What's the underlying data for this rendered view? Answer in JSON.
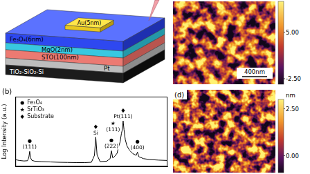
{
  "schematic": {
    "pad": "Au(5nm)",
    "layers": [
      "Fe₃O₄(6nm)",
      "MgO(2nm)",
      "STO(100nm)",
      "Pt",
      "TiO₂-SiO₂-Si"
    ]
  },
  "afm_top": {
    "scale_bar": "400nm",
    "colorbar": {
      "range": [
        -3.4,
        10
      ],
      "ticks": [
        {
          "value": 5,
          "label": "5.00"
        },
        {
          "value": -2.5,
          "label": "-2.50"
        }
      ]
    }
  },
  "chart_data": {
    "type": "line",
    "panel": "(b)",
    "y_label": "Log Intensity (a.u.)",
    "x": [
      15,
      16,
      17,
      17.8,
      18.1,
      18.3,
      18.5,
      18.8,
      19.5,
      21,
      23,
      25,
      27,
      29,
      31,
      32.5,
      33.2,
      33.5,
      33.8,
      34.5,
      36,
      36.8,
      37.1,
      37.4,
      37.8,
      38.4,
      38.8,
      39.1,
      39.4,
      39.6,
      39.8,
      40.0,
      40.3,
      40.7,
      41.3,
      42,
      42.8,
      43.1,
      43.4,
      44.5,
      46,
      48,
      50
    ],
    "values": [
      130,
      115,
      108,
      112,
      180,
      420,
      170,
      118,
      104,
      98,
      94,
      90,
      88,
      86,
      86,
      90,
      240,
      3200,
      260,
      98,
      104,
      150,
      460,
      170,
      200,
      320,
      900,
      1600,
      5200,
      9000,
      32000,
      9500,
      2200,
      900,
      480,
      310,
      240,
      380,
      200,
      150,
      132,
      122,
      116
    ],
    "color": "#000000",
    "log": "y",
    "xlim": [
      15,
      50
    ],
    "ylim": [
      50,
      1000000
    ],
    "tick_labels": false,
    "grid": false,
    "legend": "top-left",
    "legend_items": [
      {
        "label": "Fe₃O₄",
        "marker": "circle"
      },
      {
        "label": "SrTiO₃",
        "marker": "star"
      },
      {
        "label": "Substrate",
        "marker": "diamond"
      }
    ],
    "annotations": [
      {
        "text": "(111)",
        "x": 18.3,
        "marker": "circle"
      },
      {
        "text": "Si",
        "x": 33.5,
        "marker": "diamond"
      },
      {
        "text": "(222)",
        "x": 37.1,
        "marker": "circle"
      },
      {
        "text": "(111)",
        "x": 39.4,
        "marker": "star"
      },
      {
        "text": "Pt(111)",
        "x": 39.8,
        "marker": "diamond"
      },
      {
        "text": "(400)",
        "x": 43.1,
        "marker": "circle"
      }
    ]
  },
  "afm_d": {
    "panel": "(d)",
    "colorbar": {
      "unit": "nm",
      "range": [
        -0.9,
        3.0
      ],
      "ticks": [
        {
          "value": 2.5,
          "label": "2.50"
        },
        {
          "value": 0,
          "label": "0.00"
        }
      ]
    }
  }
}
